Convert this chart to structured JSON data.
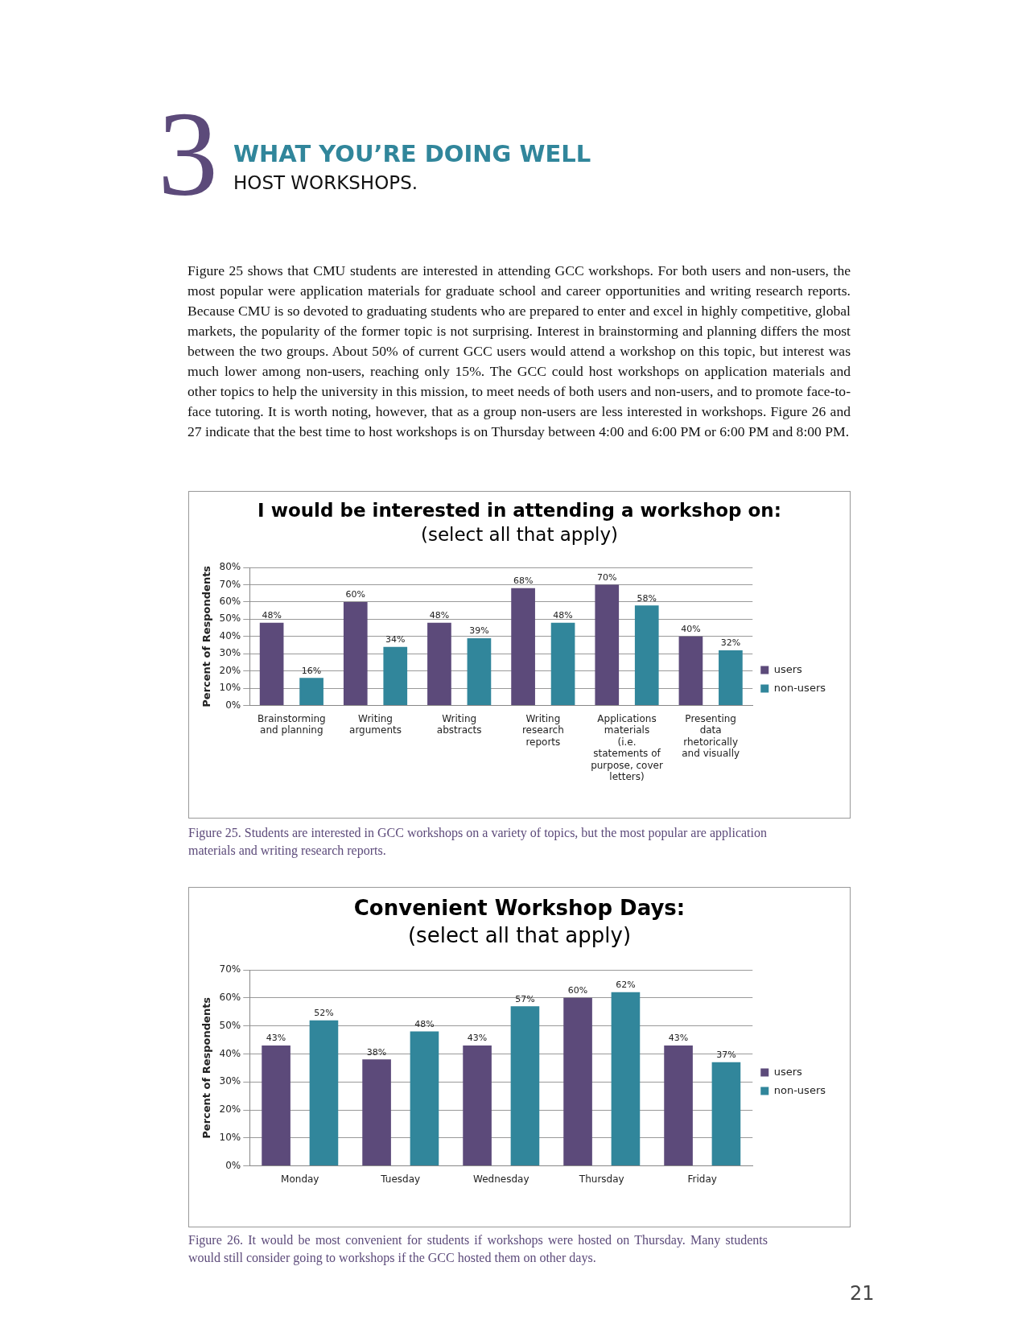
{
  "chart_data": [
    {
      "type": "bar",
      "title": "I would be interested in attending a workshop on:",
      "subtitle": "(select all that apply)",
      "ylabel": "Percent of Respondents",
      "categories": [
        "Brainstorming and planning",
        "Writing arguments",
        "Writing abstracts",
        "Writing research reports",
        "Applications materials (i.e. statements of purpose, cover letters)",
        "Presenting data rhetorically and visually"
      ],
      "series": [
        {
          "name": "users",
          "color": "#5c4a7a",
          "values": [
            48,
            60,
            48,
            68,
            70,
            40
          ],
          "value_labels": [
            "48%",
            "60%",
            "48%",
            "68%",
            "70%",
            "40%"
          ]
        },
        {
          "name": "non-users",
          "color": "#31869b",
          "values": [
            16,
            34,
            39,
            48,
            58,
            32
          ],
          "value_labels": [
            "16%",
            "34%",
            "39%",
            "48%",
            "58%",
            "32%"
          ]
        }
      ],
      "ylim": [
        0,
        80
      ],
      "yticks": [
        {
          "value": 0,
          "label": "0%"
        },
        {
          "value": 10,
          "label": "10%"
        },
        {
          "value": 20,
          "label": "20%"
        },
        {
          "value": 30,
          "label": "30%"
        },
        {
          "value": 40,
          "label": "40%"
        },
        {
          "value": 50,
          "label": "50%"
        },
        {
          "value": 60,
          "label": "60%"
        },
        {
          "value": 70,
          "label": "70%"
        },
        {
          "value": 80,
          "label": "80%"
        }
      ],
      "grid": "y",
      "legend": "right",
      "annotations": [
        "3",
        "WHAT YOU’RE DOING WELL",
        "HOST WORKSHOPS.",
        "Figure 25 shows that CMU students are interested in attending GCC workshops. For both users and non-users, the most popular were application materials for graduate school and career opportunities and writing research reports. Because CMU is so devoted to graduating students who are prepared to enter and excel in highly competitive, global markets, the popularity of the former topic is not surprising. Interest in brainstorming and planning differs the most between the two groups. About 50% of current GCC users would attend a workshop on this topic, but interest was much lower among non-users, reaching only 15%. The GCC could host workshops on application materials and other topics to help the university in this mission, to meet needs of both users and non-users, and to promote face-to-face tutoring. It is worth noting, however, that as a group non-users are less interested in workshops. Figure 26 and 27 indicate that the best time to host workshops is on Thursday between 4:00 and 6:00 PM or 6:00 PM and 8:00 PM.",
        "Figure 25. Students are interested in GCC workshops on a variety of topics, but the most popular are application materials and writing research reports."
      ]
    },
    {
      "type": "bar",
      "title": "Convenient Workshop Days:",
      "subtitle": "(select all that apply)",
      "ylabel": "Percent of Respondents",
      "categories": [
        "Monday",
        "Tuesday",
        "Wednesday",
        "Thursday",
        "Friday"
      ],
      "series": [
        {
          "name": "users",
          "color": "#5c4a7a",
          "values": [
            43,
            38,
            43,
            60,
            43
          ],
          "value_labels": [
            "43%",
            "38%",
            "43%",
            "60%",
            "43%"
          ]
        },
        {
          "name": "non-users",
          "color": "#31869b",
          "values": [
            52,
            48,
            57,
            62,
            37
          ],
          "value_labels": [
            "52%",
            "48%",
            "57%",
            "62%",
            "37%"
          ]
        }
      ],
      "ylim": [
        0,
        70
      ],
      "yticks": [
        {
          "value": 0,
          "label": "0%"
        },
        {
          "value": 10,
          "label": "10%"
        },
        {
          "value": 20,
          "label": "20%"
        },
        {
          "value": 30,
          "label": "30%"
        },
        {
          "value": 40,
          "label": "40%"
        },
        {
          "value": 50,
          "label": "50%"
        },
        {
          "value": 60,
          "label": "60%"
        },
        {
          "value": 70,
          "label": "70%"
        }
      ],
      "grid": "y",
      "legend": "right",
      "annotations": [
        "Figure 26. It would be most convenient for students if workshops were hosted on Thursday. Many students would still consider going to workshops if the GCC hosted them on other days.",
        "21"
      ]
    }
  ]
}
